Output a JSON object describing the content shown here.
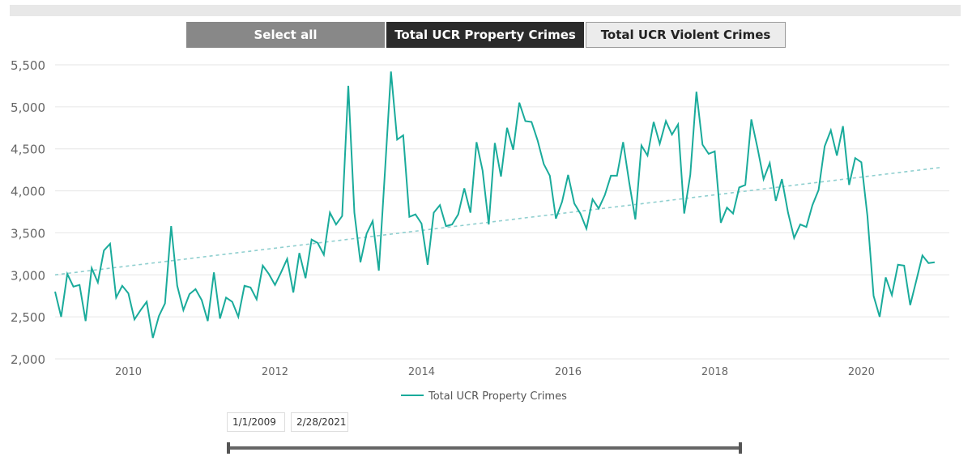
{
  "buttons": {
    "select_all": "Select all",
    "property": "Total UCR Property Crimes",
    "violent": "Total UCR Violent Crimes"
  },
  "date_range": {
    "start": "1/1/2009",
    "end": "2/28/2021"
  },
  "colors": {
    "line": "#1aab9b",
    "trend": "#8fcfcf",
    "grid": "#e6e6e6",
    "axis_text": "#666666"
  },
  "chart_data": {
    "type": "line",
    "title": "",
    "xlabel": "",
    "ylabel": "",
    "xlim": [
      2009.0,
      2021.2
    ],
    "ylim": [
      2000,
      5500
    ],
    "y_ticks": [
      2000,
      2500,
      3000,
      3500,
      4000,
      4500,
      5000,
      5500
    ],
    "y_tick_labels": [
      "2,000",
      "2,500",
      "3,000",
      "3,500",
      "4,000",
      "4,500",
      "5,000",
      "5,500"
    ],
    "x_ticks": [
      2010,
      2012,
      2014,
      2016,
      2018,
      2020
    ],
    "x_tick_labels": [
      "2010",
      "2012",
      "2014",
      "2016",
      "2018",
      "2020"
    ],
    "legend": {
      "position": "bottom",
      "label": "Total UCR Property Crimes"
    },
    "series": [
      {
        "name": "Total UCR Property Crimes",
        "x_start": 2009.0,
        "x_step": 0.08333,
        "values": [
          2800,
          2500,
          3010,
          2860,
          2880,
          2450,
          3080,
          2910,
          3290,
          3370,
          2730,
          2870,
          2780,
          2470,
          2580,
          2680,
          2250,
          2510,
          2660,
          3580,
          2870,
          2580,
          2770,
          2830,
          2700,
          2450,
          3030,
          2480,
          2730,
          2680,
          2500,
          2870,
          2850,
          2710,
          3110,
          3010,
          2880,
          3030,
          3190,
          2790,
          3260,
          2960,
          3420,
          3380,
          3240,
          3740,
          3600,
          3700,
          5250,
          3740,
          3150,
          3490,
          3640,
          3050,
          4220,
          5420,
          4610,
          4660,
          3690,
          3720,
          3610,
          3120,
          3740,
          3830,
          3580,
          3600,
          3720,
          4030,
          3740,
          4580,
          4240,
          3600,
          4570,
          4170,
          4750,
          4490,
          5050,
          4830,
          4820,
          4600,
          4320,
          4180,
          3670,
          3870,
          4190,
          3850,
          3730,
          3550,
          3900,
          3790,
          3950,
          4180,
          4180,
          4580,
          4100,
          3660,
          4540,
          4420,
          4820,
          4560,
          4830,
          4670,
          4790,
          3730,
          4190,
          5180,
          4550,
          4440,
          4470,
          3620,
          3800,
          3730,
          4040,
          4070,
          4850,
          4510,
          4140,
          4330,
          3880,
          4140,
          3740,
          3440,
          3600,
          3570,
          3830,
          4010,
          4530,
          4720,
          4420,
          4770,
          4070,
          4390,
          4340,
          3700,
          2750,
          2500,
          2970,
          2760,
          3120,
          3110,
          2640,
          2930,
          3230,
          3140,
          3150
        ]
      }
    ],
    "trendline": {
      "x": [
        2009.0,
        2021.1
      ],
      "y": [
        3000,
        4280
      ]
    }
  }
}
